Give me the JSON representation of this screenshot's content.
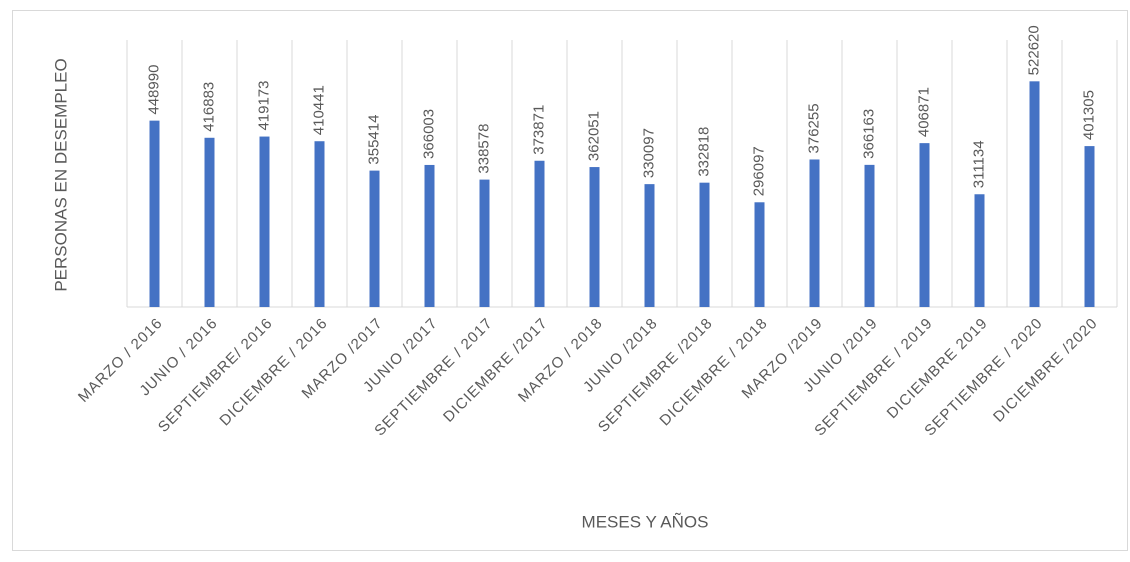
{
  "chart_data": {
    "type": "bar",
    "x_label": "MESES Y AÑOS",
    "y_label": "PERSONAS EN DESEMPLEO",
    "categories": [
      "MARZO / 2016",
      "JUNIO / 2016",
      "SEPTIEMBRE/ 2016",
      "DICIEMBRE / 2016",
      "MARZO /2017",
      "JUNIO /2017",
      "SEPTIEMBRE / 2017",
      "DICIEMBRE /2017",
      "MARZO / 2018",
      "JUNIO /2018",
      "SEPTIEMBRE /2018",
      "DICIEMBRE / 2018",
      "MARZO /2019",
      "JUNIO /2019",
      "SEPTIEMBRE / 2019",
      "DICIEMBRE 2019",
      "SEPTIEMBRE / 2020",
      "DICIEMBRE /2020"
    ],
    "values": [
      448990,
      416883,
      419173,
      410441,
      355414,
      366003,
      338578,
      373871,
      362051,
      330097,
      332818,
      296097,
      376255,
      366163,
      406871,
      311134,
      522620,
      401305
    ],
    "color": "#4472c4",
    "ylim": [
      100000,
      600000
    ],
    "grid": "x"
  }
}
